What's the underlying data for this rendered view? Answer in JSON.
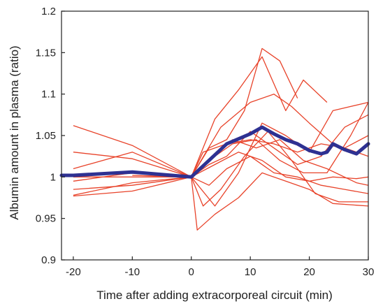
{
  "chart_data": {
    "type": "line",
    "title": "",
    "xlabel": "Time after adding extracorporeal circuit (min)",
    "ylabel": "Albumin amount in plasma (ratio)",
    "xlim": [
      -22,
      30
    ],
    "ylim": [
      0.9,
      1.2
    ],
    "x_ticks": [
      -20,
      -10,
      0,
      10,
      20,
      30
    ],
    "x_tick_labels": [
      "-20",
      "-10",
      "0",
      "10",
      "20",
      "30"
    ],
    "y_ticks": [
      0.9,
      0.95,
      1.0,
      1.05,
      1.1,
      1.15,
      1.2
    ],
    "y_tick_labels": [
      "0.9",
      "0.95",
      "1",
      "1.05",
      "1.1",
      "1.15",
      "1.2"
    ],
    "grid": false,
    "legend": "none",
    "colors": {
      "individual": "#e8432a",
      "mean": "#2e3192",
      "axis": "#222222"
    },
    "series": [
      {
        "points": [
          [
            -20,
            1.062
          ],
          [
            -10,
            1.038
          ],
          [
            0,
            1.0
          ],
          [
            3,
            1.035
          ],
          [
            6,
            1.045
          ],
          [
            9,
            1.08
          ],
          [
            12,
            1.155
          ],
          [
            15,
            1.14
          ],
          [
            18,
            1.095
          ]
        ]
      },
      {
        "points": [
          [
            -20,
            1.03
          ],
          [
            -10,
            1.022
          ],
          [
            0,
            1.0
          ],
          [
            4,
            1.07
          ],
          [
            8,
            1.105
          ],
          [
            12,
            1.145
          ],
          [
            16,
            1.08
          ],
          [
            19,
            1.117
          ],
          [
            23,
            1.09
          ]
        ]
      },
      {
        "points": [
          [
            -20,
            1.01
          ],
          [
            -10,
            1.03
          ],
          [
            0,
            1.0
          ],
          [
            4,
            0.965
          ],
          [
            8,
            1.005
          ],
          [
            12,
            1.065
          ],
          [
            16,
            1.05
          ],
          [
            20,
            1.03
          ],
          [
            24,
            1.08
          ],
          [
            30,
            1.09
          ]
        ]
      },
      {
        "points": [
          [
            -20,
            0.995
          ],
          [
            -10,
            1.005
          ],
          [
            0,
            1.0
          ],
          [
            3,
            1.015
          ],
          [
            6,
            1.025
          ],
          [
            10,
            1.055
          ],
          [
            14,
            1.035
          ],
          [
            18,
            1.015
          ],
          [
            22,
            1.025
          ],
          [
            26,
            1.06
          ],
          [
            30,
            1.075
          ]
        ]
      },
      {
        "points": [
          [
            -20,
            0.985
          ],
          [
            -10,
            0.99
          ],
          [
            0,
            1.0
          ],
          [
            2,
            1.03
          ],
          [
            6,
            1.04
          ],
          [
            10,
            1.045
          ],
          [
            14,
            1.04
          ],
          [
            18,
            1.03
          ],
          [
            22,
            1.04
          ],
          [
            26,
            1.035
          ],
          [
            30,
            1.05
          ]
        ]
      },
      {
        "points": [
          [
            -20,
            0.977
          ],
          [
            -10,
            0.983
          ],
          [
            0,
            1.0
          ],
          [
            2,
            0.965
          ],
          [
            5,
            0.985
          ],
          [
            9,
            1.025
          ],
          [
            13,
            1.055
          ],
          [
            17,
            1.02
          ],
          [
            21,
            0.98
          ],
          [
            25,
            0.97
          ],
          [
            30,
            0.97
          ]
        ]
      },
      {
        "points": [
          [
            -20,
            1.0
          ],
          [
            -10,
            1.0
          ],
          [
            0,
            1.0
          ],
          [
            1,
            0.936
          ],
          [
            4,
            0.955
          ],
          [
            8,
            0.975
          ],
          [
            12,
            1.005
          ],
          [
            16,
            0.995
          ],
          [
            20,
            0.985
          ],
          [
            24,
            0.968
          ],
          [
            30,
            0.965
          ]
        ]
      },
      {
        "points": [
          [
            -20,
            0.978
          ],
          [
            -10,
            0.993
          ],
          [
            0,
            1.0
          ],
          [
            3,
            1.02
          ],
          [
            7,
            1.04
          ],
          [
            11,
            1.045
          ],
          [
            15,
            1.02
          ],
          [
            19,
            1.005
          ],
          [
            23,
            1.005
          ],
          [
            27,
            1.05
          ],
          [
            30,
            1.09
          ]
        ]
      },
      {
        "points": [
          [
            -10,
            1.002
          ],
          [
            0,
            1.0
          ],
          [
            3,
            0.99
          ],
          [
            6,
            1.01
          ],
          [
            10,
            1.025
          ],
          [
            14,
            1.005
          ],
          [
            18,
            1.0
          ],
          [
            22,
            0.99
          ],
          [
            26,
            0.985
          ],
          [
            30,
            0.98
          ]
        ]
      },
      {
        "points": [
          [
            0,
            1.0
          ],
          [
            3,
            1.02
          ],
          [
            7,
            1.045
          ],
          [
            11,
            1.035
          ],
          [
            15,
            1.045
          ],
          [
            19,
            1.02
          ],
          [
            23,
            1.01
          ],
          [
            28,
            0.993
          ],
          [
            30,
            0.99
          ]
        ]
      },
      {
        "points": [
          [
            0,
            1.0
          ],
          [
            5,
            1.06
          ],
          [
            10,
            1.09
          ],
          [
            14,
            1.1
          ],
          [
            17,
            1.085
          ],
          [
            20,
            1.065
          ],
          [
            24,
            1.04
          ],
          [
            28,
            1.03
          ],
          [
            30,
            1.025
          ]
        ]
      },
      {
        "points": [
          [
            0,
            1.0
          ],
          [
            4,
            1.015
          ],
          [
            8,
            1.03
          ],
          [
            12,
            1.02
          ],
          [
            16,
            1.0
          ],
          [
            20,
            0.995
          ],
          [
            24,
            1.0
          ],
          [
            28,
            0.998
          ],
          [
            30,
            1.0
          ]
        ]
      }
    ],
    "mean_series": {
      "points": [
        [
          -22,
          1.002
        ],
        [
          -20,
          1.002
        ],
        [
          -10,
          1.006
        ],
        [
          0,
          1.0
        ],
        [
          3,
          1.02
        ],
        [
          6,
          1.04
        ],
        [
          10,
          1.052
        ],
        [
          12,
          1.06
        ],
        [
          14,
          1.052
        ],
        [
          16,
          1.045
        ],
        [
          18,
          1.04
        ],
        [
          20,
          1.032
        ],
        [
          22,
          1.028
        ],
        [
          23,
          1.03
        ],
        [
          24,
          1.04
        ],
        [
          26,
          1.033
        ],
        [
          28,
          1.028
        ],
        [
          30,
          1.04
        ]
      ]
    }
  }
}
